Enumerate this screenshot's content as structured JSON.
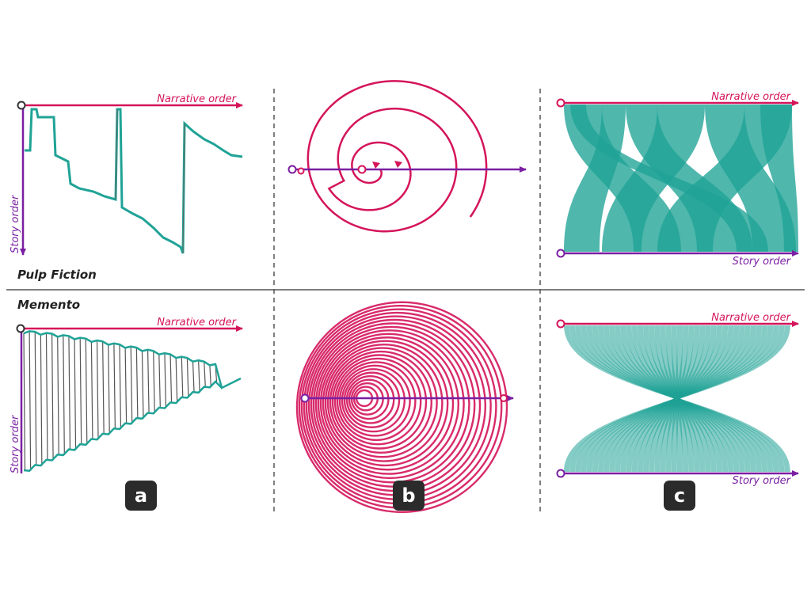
{
  "colors": {
    "narrative": "#d4145a",
    "story": "#7a1fa2",
    "flow": "#1fa396",
    "flow_dark": "#137a70",
    "connector": "#555555",
    "divider": "#555555",
    "badge_bg": "#2b2b2b"
  },
  "labels": {
    "narrative_order": "Narrative order",
    "story_order": "Story order"
  },
  "films": {
    "pulp_fiction": "Pulp Fiction",
    "memento": "Memento"
  },
  "panels": [
    {
      "letter": "a",
      "technique": "timeline"
    },
    {
      "letter": "b",
      "technique": "spiral"
    },
    {
      "letter": "c",
      "technique": "parallel flow"
    }
  ]
}
